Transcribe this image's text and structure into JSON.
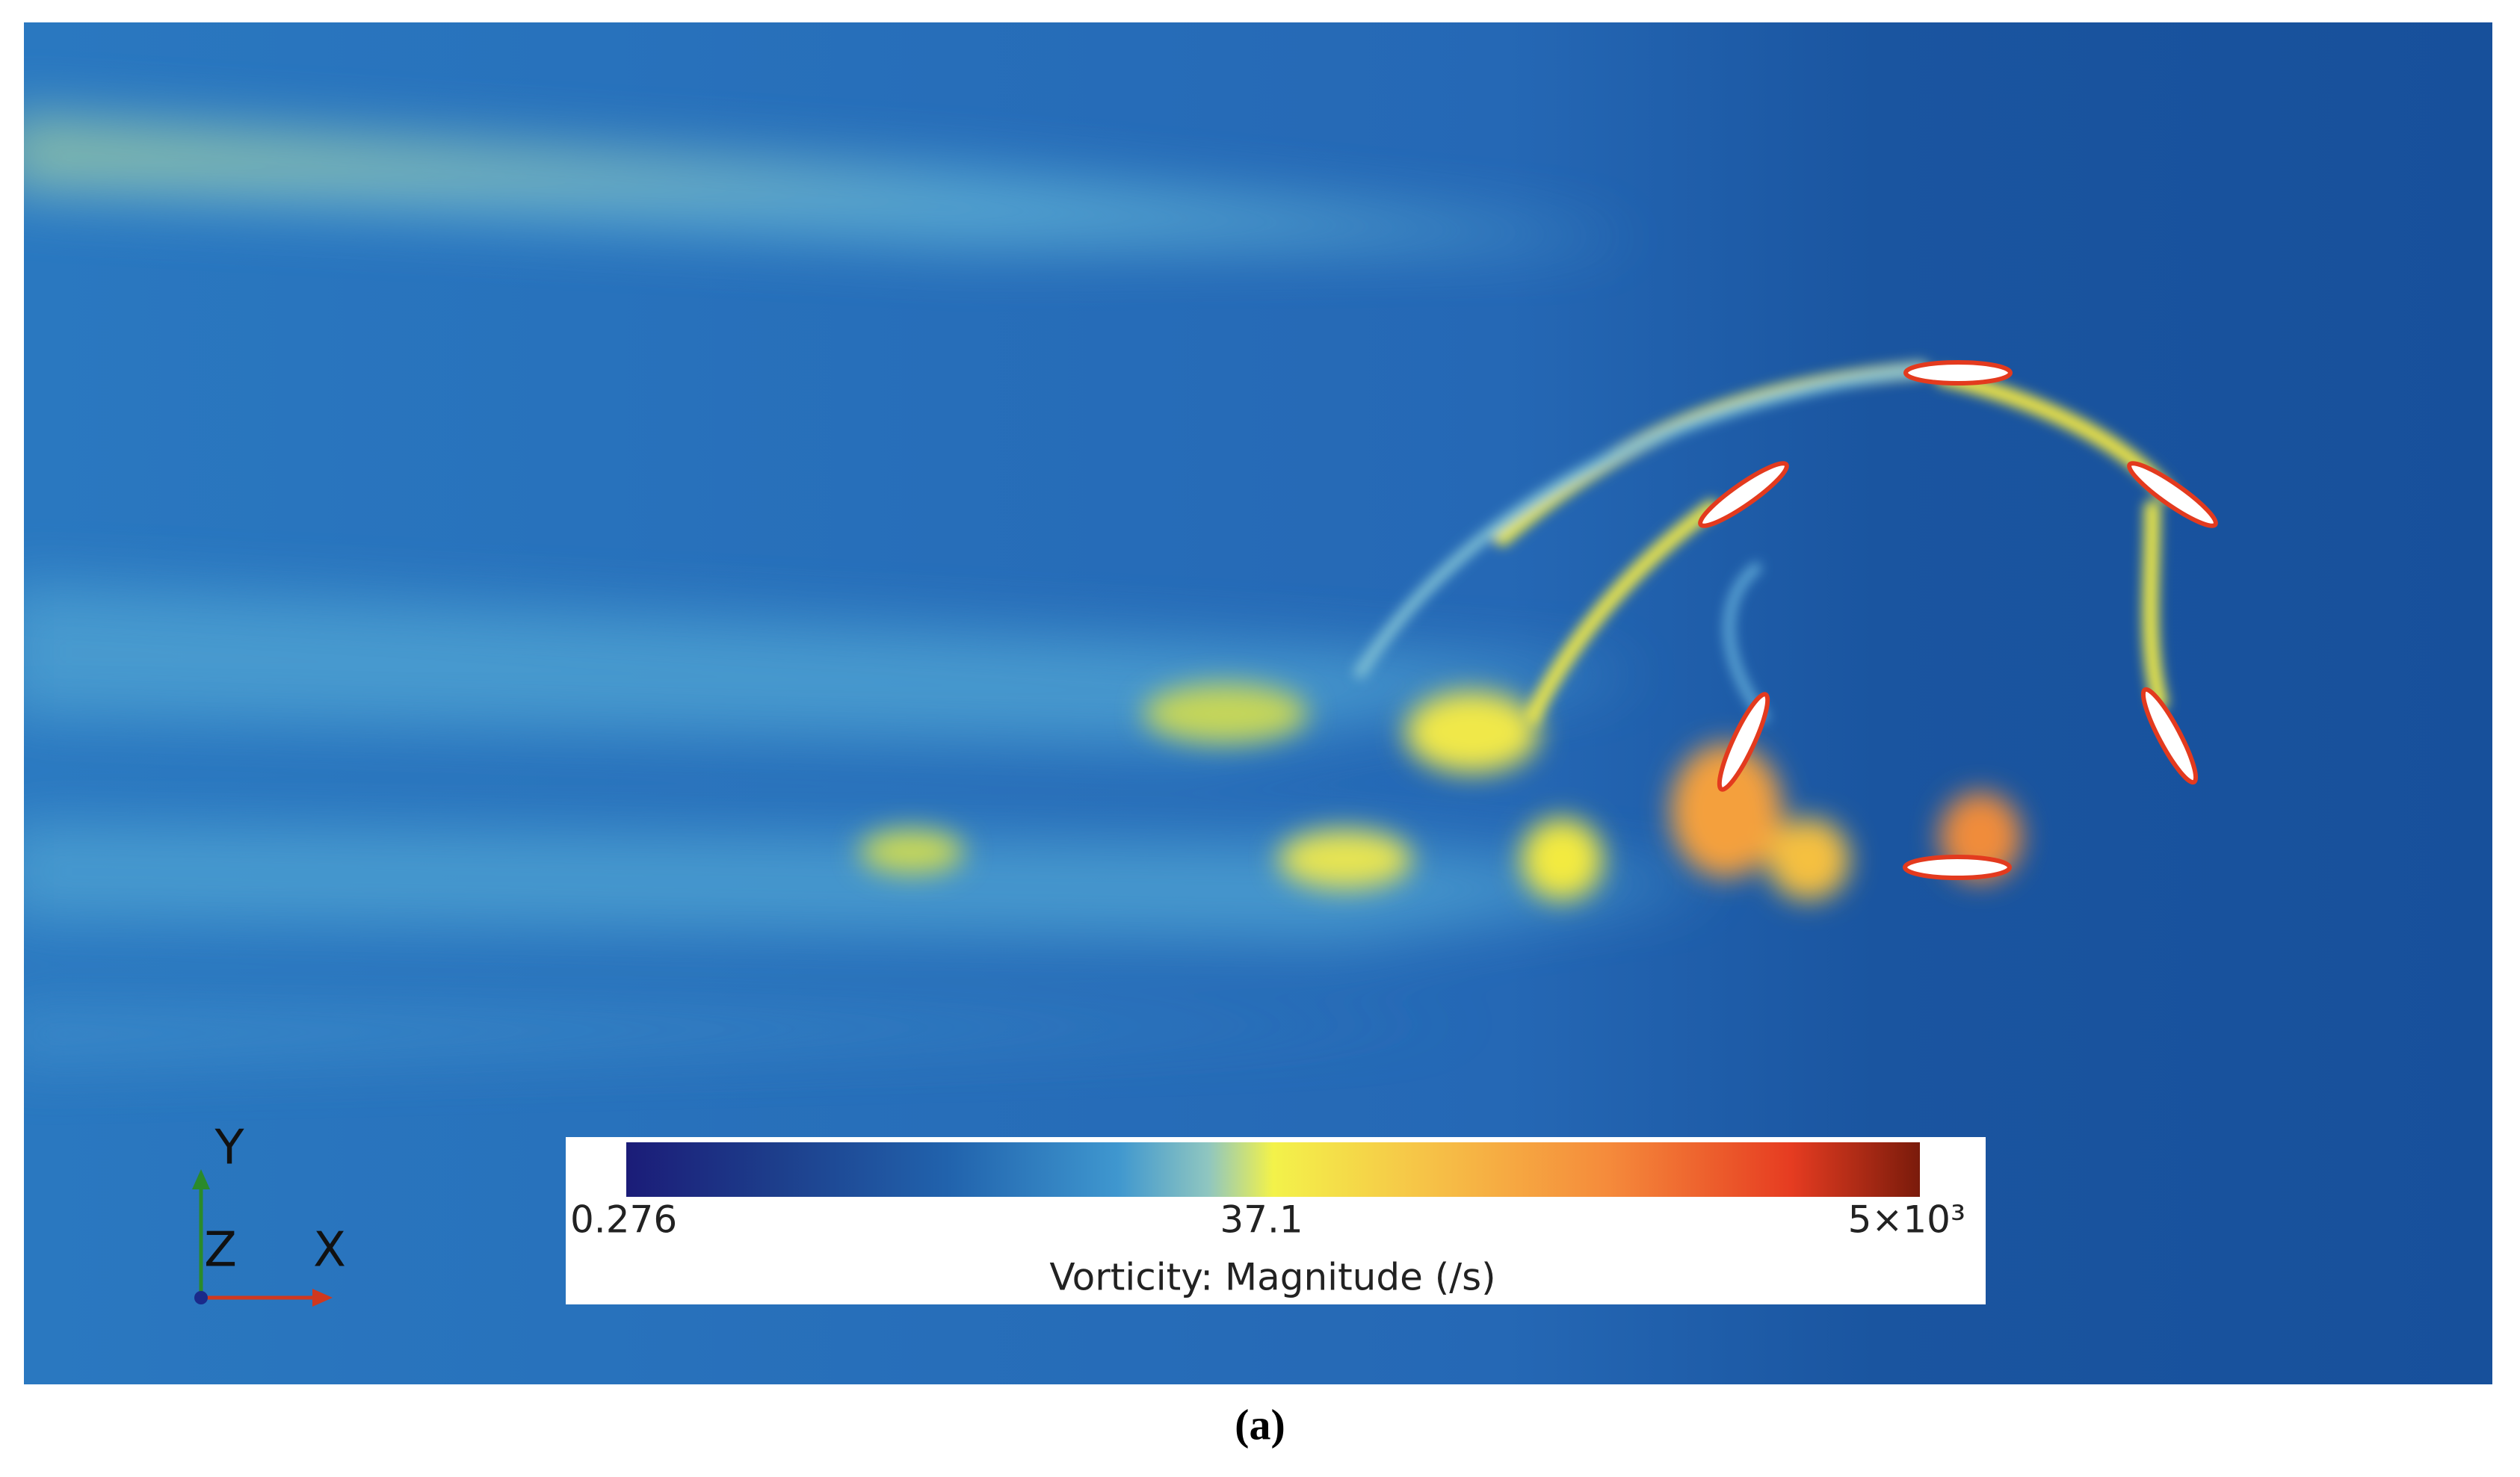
{
  "figure": {
    "axes": {
      "y": "Y",
      "z": "Z",
      "x": "X"
    },
    "colorbar": {
      "min_label": "0.276",
      "mid_label": "37.1",
      "max_label": "5×10³",
      "title": "Vorticity: Magnitude (/s)"
    },
    "caption": "(a)"
  }
}
